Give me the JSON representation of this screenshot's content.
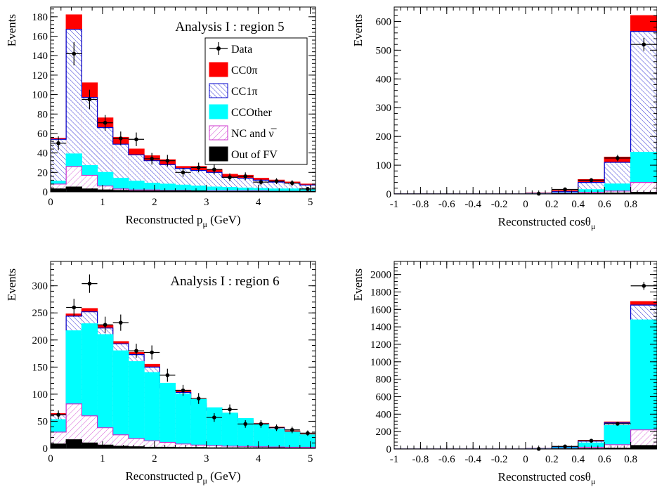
{
  "colors": {
    "cc0pi": "#ff0000",
    "cc1pi": "#0000cc",
    "ccother": "#00ffff",
    "nc": "#cc33cc",
    "outfv": "#000000",
    "data": "#000000"
  },
  "legend": [
    {
      "key": "data",
      "label": "Data"
    },
    {
      "key": "cc0pi",
      "label": "CC0π"
    },
    {
      "key": "cc1pi",
      "label": "CC1π"
    },
    {
      "key": "ccother",
      "label": "CCOther"
    },
    {
      "key": "nc",
      "label": "NC and ν̅"
    },
    {
      "key": "outfv",
      "label": "Out of FV"
    }
  ],
  "chart_data": [
    {
      "id": "p5",
      "type": "bar",
      "title": "Analysis I : region 5",
      "xlabel": "Reconstructed p",
      "xlabel_sub": "μ",
      "xlabel_unit": " (GeV)",
      "ylabel": "Events",
      "xlim": [
        0,
        5.1
      ],
      "ylim": [
        0,
        190
      ],
      "xticks": [
        0,
        1,
        2,
        3,
        4,
        5
      ],
      "yticks": [
        0,
        20,
        40,
        60,
        80,
        100,
        120,
        140,
        160,
        180
      ],
      "grid": false,
      "legend_position": "top-right",
      "bin_edges": [
        0,
        0.3,
        0.6,
        0.9,
        1.2,
        1.5,
        1.8,
        2.1,
        2.4,
        2.7,
        3.0,
        3.3,
        3.6,
        3.9,
        4.2,
        4.5,
        4.8,
        5.1
      ],
      "stack": {
        "outfv": [
          3,
          5,
          3,
          2,
          1.5,
          1,
          1,
          1,
          1,
          1,
          0.5,
          0.5,
          0.5,
          0.5,
          0.5,
          0.5,
          0.5
        ],
        "nc": [
          8,
          26,
          17,
          6,
          3,
          2,
          2,
          1.5,
          1.5,
          1,
          1,
          1,
          1,
          1,
          0.5,
          0.5,
          0.5
        ],
        "ccother": [
          11,
          39,
          27,
          20,
          14,
          11,
          9,
          8,
          7,
          6,
          5,
          4.5,
          4,
          3.5,
          3,
          3,
          2.5
        ],
        "cc1pi": [
          54,
          167,
          97,
          66,
          49,
          38,
          32,
          28,
          24,
          22,
          20,
          15,
          14,
          12,
          10,
          9,
          7
        ],
        "cc0pi": [
          55,
          182,
          112,
          76,
          56,
          44,
          37,
          33,
          26,
          26,
          23,
          18,
          17,
          14,
          12,
          10,
          8
        ]
      },
      "data": {
        "x": [
          0.15,
          0.45,
          0.75,
          1.05,
          1.35,
          1.65,
          1.95,
          2.25,
          2.55,
          2.85,
          3.15,
          3.45,
          3.75,
          4.05,
          4.35,
          4.65,
          4.95
        ],
        "y": [
          50,
          142,
          95,
          71,
          55,
          54,
          34,
          32,
          20,
          25,
          23,
          15,
          16,
          10,
          11,
          9,
          3
        ],
        "err": [
          7,
          12,
          10,
          8,
          7,
          7,
          6,
          6,
          4.5,
          5,
          5,
          4,
          4,
          3,
          3,
          3,
          2
        ]
      }
    },
    {
      "id": "c5",
      "type": "bar",
      "xlabel": "Reconstructed cosθ",
      "xlabel_sub": "μ",
      "xlabel_unit": "",
      "ylabel": "Events",
      "xlim": [
        -1,
        1
      ],
      "ylim": [
        0,
        650
      ],
      "xticks": [
        -1,
        -0.8,
        -0.6,
        -0.4,
        -0.2,
        0,
        0.2,
        0.4,
        0.6,
        0.8
      ],
      "xtick_labels": [
        "-1",
        "-0.8",
        "-0.6",
        "-0.4",
        "-0.2",
        "0",
        "0.2",
        "0.4",
        "0.6",
        "0.8"
      ],
      "yticks": [
        0,
        100,
        200,
        300,
        400,
        500,
        600
      ],
      "grid": false,
      "bin_edges": [
        -1,
        0,
        0.2,
        0.4,
        0.6,
        0.8,
        1.0
      ],
      "stack": {
        "outfv": [
          0,
          0,
          1,
          2,
          3,
          6
        ],
        "nc": [
          0,
          0.5,
          3,
          6,
          10,
          40
        ],
        "ccother": [
          0,
          1,
          5,
          15,
          35,
          145
        ],
        "cc1pi": [
          0,
          2,
          8,
          40,
          110,
          565
        ],
        "cc0pi": [
          0,
          3,
          12,
          50,
          128,
          620
        ]
      },
      "data": {
        "x": [
          0.1,
          0.3,
          0.5,
          0.7,
          0.9
        ],
        "y": [
          1,
          16,
          48,
          125,
          520
        ],
        "err": [
          1,
          4,
          7,
          11,
          23
        ]
      }
    },
    {
      "id": "p6",
      "type": "bar",
      "title": "Analysis I : region 6",
      "xlabel": "Reconstructed p",
      "xlabel_sub": "μ",
      "xlabel_unit": " (GeV)",
      "ylabel": "Events",
      "xlim": [
        0,
        5.1
      ],
      "ylim": [
        0,
        345
      ],
      "xticks": [
        0,
        1,
        2,
        3,
        4,
        5
      ],
      "yticks": [
        0,
        50,
        100,
        150,
        200,
        250,
        300
      ],
      "grid": false,
      "bin_edges": [
        0,
        0.3,
        0.6,
        0.9,
        1.2,
        1.5,
        1.8,
        2.1,
        2.4,
        2.7,
        3.0,
        3.3,
        3.6,
        3.9,
        4.2,
        4.5,
        4.8,
        5.1
      ],
      "stack": {
        "outfv": [
          8,
          16,
          10,
          6,
          4,
          3,
          2,
          2,
          1.5,
          1.5,
          1,
          1,
          1,
          1,
          1,
          0.5,
          0.5
        ],
        "nc": [
          30,
          82,
          60,
          38,
          25,
          18,
          14,
          11,
          8,
          6,
          5,
          4,
          3.5,
          3,
          2.5,
          2,
          2
        ],
        "ccother": [
          53,
          217,
          230,
          210,
          180,
          160,
          140,
          120,
          100,
          90,
          75,
          65,
          55,
          45,
          35,
          30,
          25
        ],
        "cc1pi": [
          62,
          244,
          252,
          222,
          193,
          173,
          150,
          112,
          103,
          80,
          70,
          62,
          50,
          45,
          38,
          30,
          24
        ],
        "cc0pi": [
          64,
          248,
          258,
          227,
          197,
          177,
          155,
          116,
          107,
          83,
          72,
          64,
          52,
          46,
          39,
          32,
          26
        ]
      },
      "data": {
        "x": [
          0.15,
          0.45,
          0.75,
          1.05,
          1.35,
          1.65,
          1.95,
          2.25,
          2.55,
          2.85,
          3.15,
          3.45,
          3.75,
          4.05,
          4.35,
          4.65,
          4.95
        ],
        "y": [
          62,
          260,
          304,
          228,
          232,
          180,
          177,
          135,
          107,
          92,
          57,
          72,
          45,
          45,
          38,
          34,
          28
        ],
        "err": [
          8,
          16,
          17,
          15,
          15,
          13,
          13,
          12,
          10,
          10,
          8,
          9,
          7,
          7,
          6,
          6,
          5
        ]
      }
    },
    {
      "id": "c6",
      "type": "bar",
      "xlabel": "Reconstructed cosθ",
      "xlabel_sub": "μ",
      "xlabel_unit": "",
      "ylabel": "Events",
      "xlim": [
        -1,
        1
      ],
      "ylim": [
        0,
        2150
      ],
      "xticks": [
        -1,
        -0.8,
        -0.6,
        -0.4,
        -0.2,
        0,
        0.2,
        0.4,
        0.6,
        0.8
      ],
      "xtick_labels": [
        "-1",
        "-0.8",
        "-0.6",
        "-0.4",
        "-0.2",
        "0",
        "0.2",
        "0.4",
        "0.6",
        "0.8"
      ],
      "yticks": [
        0,
        200,
        400,
        600,
        800,
        1000,
        1200,
        1400,
        1600,
        1800,
        2000
      ],
      "grid": false,
      "bin_edges": [
        -1,
        0,
        0.2,
        0.4,
        0.6,
        0.8,
        1.0
      ],
      "stack": {
        "outfv": [
          0,
          0,
          2,
          5,
          10,
          40
        ],
        "nc": [
          0,
          1,
          5,
          20,
          50,
          220
        ],
        "ccother": [
          0,
          3,
          15,
          70,
          270,
          1480
        ],
        "cc1pi": [
          0,
          5,
          22,
          90,
          300,
          1650
        ],
        "cc0pi": [
          0,
          6,
          25,
          100,
          310,
          1690
        ]
      },
      "data": {
        "x": [
          0.1,
          0.3,
          0.5,
          0.7,
          0.9
        ],
        "y": [
          2,
          30,
          95,
          290,
          1870
        ],
        "err": [
          2,
          6,
          10,
          17,
          45
        ]
      }
    }
  ]
}
